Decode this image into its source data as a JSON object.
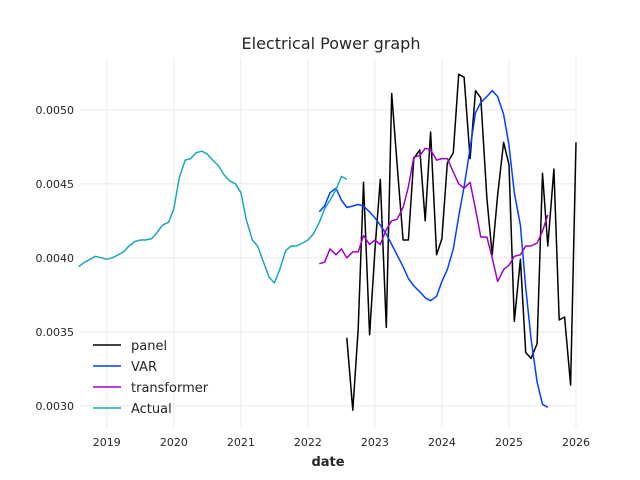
{
  "chart_data": {
    "type": "line",
    "title": "Electrical Power graph",
    "xlabel": "date",
    "ylabel": "",
    "xlim": [
      2018.6,
      2026.0
    ],
    "ylim": [
      0.00285,
      0.00535
    ],
    "x_ticks": [
      {
        "value": 2019,
        "label": "2019"
      },
      {
        "value": 2020,
        "label": "2020"
      },
      {
        "value": 2021,
        "label": "2021"
      },
      {
        "value": 2022,
        "label": "2022"
      },
      {
        "value": 2023,
        "label": "2023"
      },
      {
        "value": 2024,
        "label": "2024"
      },
      {
        "value": 2025,
        "label": "2025"
      },
      {
        "value": 2026,
        "label": "2026"
      }
    ],
    "y_ticks": [
      {
        "value": 0.003,
        "label": "0.0030"
      },
      {
        "value": 0.0035,
        "label": "0.0035"
      },
      {
        "value": 0.004,
        "label": "0.0040"
      },
      {
        "value": 0.0045,
        "label": "0.0045"
      },
      {
        "value": 0.005,
        "label": "0.0050"
      }
    ],
    "grid": true,
    "legend_position": "lower-left",
    "series": [
      {
        "name": "panel",
        "color": "#000000",
        "points": [
          [
            2022.58,
            0.00346
          ],
          [
            2022.67,
            0.00297
          ],
          [
            2022.75,
            0.00352
          ],
          [
            2022.83,
            0.00451
          ],
          [
            2022.92,
            0.00348
          ],
          [
            2023.0,
            0.00405
          ],
          [
            2023.08,
            0.00453
          ],
          [
            2023.17,
            0.00353
          ],
          [
            2023.25,
            0.00511
          ],
          [
            2023.33,
            0.00464
          ],
          [
            2023.42,
            0.00412
          ],
          [
            2023.5,
            0.00412
          ],
          [
            2023.58,
            0.00467
          ],
          [
            2023.67,
            0.00473
          ],
          [
            2023.75,
            0.00425
          ],
          [
            2023.83,
            0.00485
          ],
          [
            2023.92,
            0.00402
          ],
          [
            2024.0,
            0.00413
          ],
          [
            2024.08,
            0.00464
          ],
          [
            2024.17,
            0.00471
          ],
          [
            2024.25,
            0.00524
          ],
          [
            2024.33,
            0.00522
          ],
          [
            2024.42,
            0.00467
          ],
          [
            2024.5,
            0.00513
          ],
          [
            2024.58,
            0.00508
          ],
          [
            2024.67,
            0.0044
          ],
          [
            2024.75,
            0.00402
          ],
          [
            2024.83,
            0.00442
          ],
          [
            2024.92,
            0.00478
          ],
          [
            2025.0,
            0.00463
          ],
          [
            2025.08,
            0.00357
          ],
          [
            2025.17,
            0.00399
          ],
          [
            2025.25,
            0.00336
          ],
          [
            2025.33,
            0.00332
          ],
          [
            2025.42,
            0.00342
          ],
          [
            2025.5,
            0.00457
          ],
          [
            2025.58,
            0.00408
          ],
          [
            2025.67,
            0.0046
          ],
          [
            2025.75,
            0.00358
          ],
          [
            2025.83,
            0.0036
          ],
          [
            2025.92,
            0.00314
          ],
          [
            2026.0,
            0.00478
          ]
        ]
      },
      {
        "name": "VAR",
        "color": "#0040ff",
        "points": [
          [
            2022.17,
            0.00431
          ],
          [
            2022.25,
            0.00435
          ],
          [
            2022.33,
            0.00444
          ],
          [
            2022.42,
            0.00447
          ],
          [
            2022.5,
            0.00439
          ],
          [
            2022.58,
            0.00434
          ],
          [
            2022.67,
            0.00435
          ],
          [
            2022.75,
            0.00436
          ],
          [
            2022.83,
            0.00435
          ],
          [
            2022.92,
            0.00431
          ],
          [
            2023.0,
            0.00427
          ],
          [
            2023.08,
            0.00422
          ],
          [
            2023.17,
            0.00416
          ],
          [
            2023.25,
            0.00409
          ],
          [
            2023.33,
            0.00402
          ],
          [
            2023.42,
            0.00394
          ],
          [
            2023.5,
            0.00386
          ],
          [
            2023.58,
            0.00381
          ],
          [
            2023.67,
            0.00377
          ],
          [
            2023.75,
            0.00373
          ],
          [
            2023.83,
            0.00371
          ],
          [
            2023.92,
            0.00374
          ],
          [
            2024.0,
            0.00384
          ],
          [
            2024.08,
            0.00392
          ],
          [
            2024.17,
            0.00406
          ],
          [
            2024.25,
            0.00428
          ],
          [
            2024.33,
            0.00448
          ],
          [
            2024.42,
            0.00474
          ],
          [
            2024.5,
            0.00498
          ],
          [
            2024.58,
            0.00505
          ],
          [
            2024.67,
            0.00509
          ],
          [
            2024.75,
            0.00513
          ],
          [
            2024.83,
            0.00509
          ],
          [
            2024.92,
            0.00497
          ],
          [
            2025.0,
            0.00476
          ],
          [
            2025.08,
            0.00444
          ],
          [
            2025.17,
            0.00422
          ],
          [
            2025.25,
            0.0038
          ],
          [
            2025.33,
            0.00345
          ],
          [
            2025.42,
            0.00316
          ],
          [
            2025.5,
            0.00301
          ],
          [
            2025.58,
            0.00299
          ]
        ]
      },
      {
        "name": "transformer",
        "color": "#a000c8",
        "points": [
          [
            2022.17,
            0.00396
          ],
          [
            2022.25,
            0.00397
          ],
          [
            2022.33,
            0.00406
          ],
          [
            2022.42,
            0.00402
          ],
          [
            2022.5,
            0.00406
          ],
          [
            2022.58,
            0.004
          ],
          [
            2022.67,
            0.00404
          ],
          [
            2022.75,
            0.00404
          ],
          [
            2022.83,
            0.00415
          ],
          [
            2022.92,
            0.00409
          ],
          [
            2023.0,
            0.00412
          ],
          [
            2023.08,
            0.00409
          ],
          [
            2023.17,
            0.00419
          ],
          [
            2023.25,
            0.00425
          ],
          [
            2023.33,
            0.00426
          ],
          [
            2023.42,
            0.00434
          ],
          [
            2023.5,
            0.00448
          ],
          [
            2023.58,
            0.00468
          ],
          [
            2023.67,
            0.00469
          ],
          [
            2023.75,
            0.00474
          ],
          [
            2023.83,
            0.00473
          ],
          [
            2023.92,
            0.00466
          ],
          [
            2024.0,
            0.00467
          ],
          [
            2024.08,
            0.00467
          ],
          [
            2024.17,
            0.00458
          ],
          [
            2024.25,
            0.0045
          ],
          [
            2024.33,
            0.00447
          ],
          [
            2024.42,
            0.00451
          ],
          [
            2024.5,
            0.00433
          ],
          [
            2024.58,
            0.00414
          ],
          [
            2024.67,
            0.00414
          ],
          [
            2024.75,
            0.004
          ],
          [
            2024.83,
            0.00384
          ],
          [
            2024.92,
            0.00392
          ],
          [
            2025.0,
            0.00395
          ],
          [
            2025.08,
            0.00401
          ],
          [
            2025.17,
            0.00402
          ],
          [
            2025.25,
            0.00408
          ],
          [
            2025.33,
            0.00408
          ],
          [
            2025.42,
            0.0041
          ],
          [
            2025.5,
            0.00418
          ],
          [
            2025.58,
            0.00429
          ]
        ]
      },
      {
        "name": "Actual",
        "color": "#17a9b7",
        "points": [
          [
            2018.58,
            0.00394
          ],
          [
            2018.67,
            0.00397
          ],
          [
            2018.75,
            0.00399
          ],
          [
            2018.83,
            0.00401
          ],
          [
            2018.92,
            0.004
          ],
          [
            2019.0,
            0.00399
          ],
          [
            2019.08,
            0.004
          ],
          [
            2019.17,
            0.00402
          ],
          [
            2019.25,
            0.00404
          ],
          [
            2019.33,
            0.00408
          ],
          [
            2019.42,
            0.00411
          ],
          [
            2019.5,
            0.00412
          ],
          [
            2019.58,
            0.00412
          ],
          [
            2019.67,
            0.00413
          ],
          [
            2019.75,
            0.00417
          ],
          [
            2019.83,
            0.00422
          ],
          [
            2019.92,
            0.00424
          ],
          [
            2020.0,
            0.00433
          ],
          [
            2020.08,
            0.00454
          ],
          [
            2020.17,
            0.00466
          ],
          [
            2020.25,
            0.00467
          ],
          [
            2020.33,
            0.00471
          ],
          [
            2020.42,
            0.00472
          ],
          [
            2020.5,
            0.0047
          ],
          [
            2020.58,
            0.00466
          ],
          [
            2020.67,
            0.00462
          ],
          [
            2020.75,
            0.00456
          ],
          [
            2020.83,
            0.00452
          ],
          [
            2020.92,
            0.0045
          ],
          [
            2021.0,
            0.00444
          ],
          [
            2021.08,
            0.00426
          ],
          [
            2021.17,
            0.00412
          ],
          [
            2021.25,
            0.00408
          ],
          [
            2021.33,
            0.00398
          ],
          [
            2021.42,
            0.00387
          ],
          [
            2021.5,
            0.00383
          ],
          [
            2021.58,
            0.00392
          ],
          [
            2021.67,
            0.00405
          ],
          [
            2021.75,
            0.00408
          ],
          [
            2021.83,
            0.00408
          ],
          [
            2021.92,
            0.0041
          ],
          [
            2022.0,
            0.00412
          ],
          [
            2022.08,
            0.00416
          ],
          [
            2022.17,
            0.00424
          ],
          [
            2022.25,
            0.00433
          ],
          [
            2022.33,
            0.00439
          ],
          [
            2022.42,
            0.00446
          ],
          [
            2022.5,
            0.00455
          ],
          [
            2022.58,
            0.00453
          ]
        ]
      }
    ]
  }
}
